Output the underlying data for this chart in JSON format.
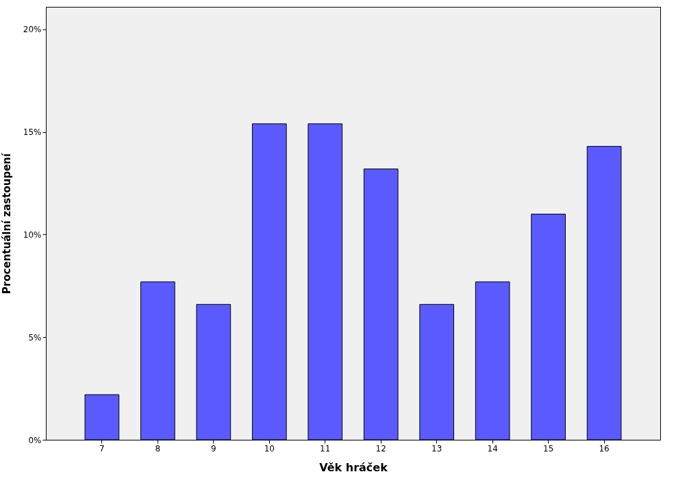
{
  "chart_data": {
    "type": "bar",
    "xlabel": "Věk hráček",
    "ylabel": "Procentuální zastoupení",
    "categories": [
      "7",
      "8",
      "9",
      "10",
      "11",
      "12",
      "13",
      "14",
      "15",
      "16"
    ],
    "values": [
      2.2,
      7.7,
      6.6,
      15.4,
      15.4,
      13.2,
      6.6,
      7.7,
      11.0,
      14.3
    ],
    "color": "#5a5aff",
    "ylim": [
      0,
      21.1
    ],
    "yticks": [
      {
        "value": 0,
        "label": "0%"
      },
      {
        "value": 5,
        "label": "5%"
      },
      {
        "value": 10,
        "label": "10%"
      },
      {
        "value": 15,
        "label": "15%"
      },
      {
        "value": 20,
        "label": "20%"
      }
    ],
    "grid": false
  }
}
